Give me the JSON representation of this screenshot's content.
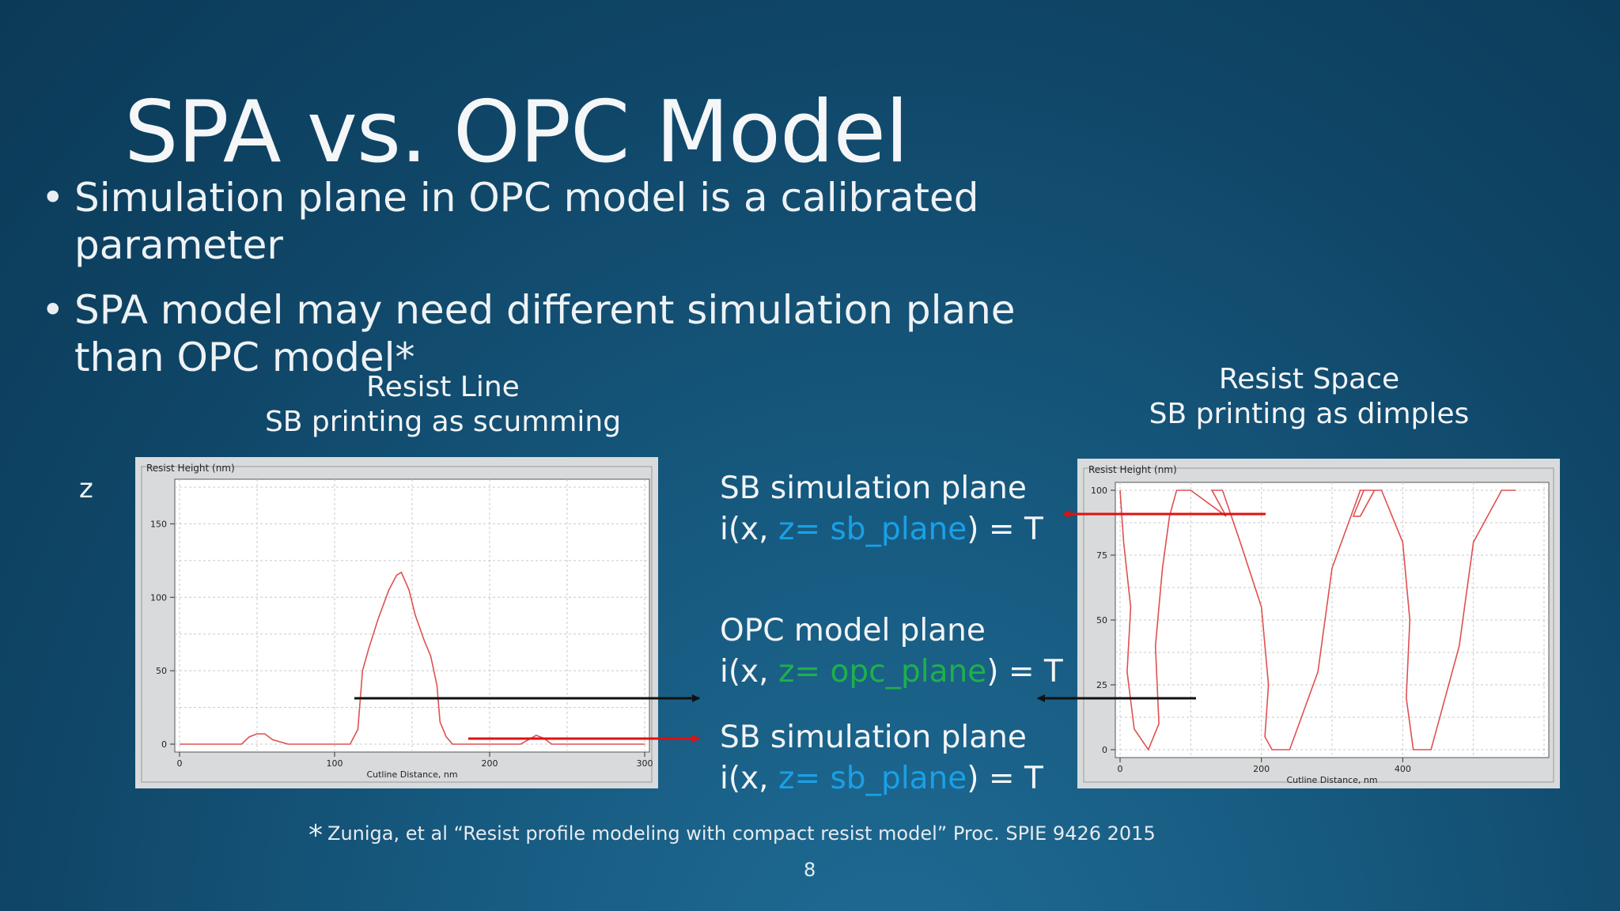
{
  "slide": {
    "title": "SPA vs. OPC Model",
    "bullets": [
      "Simulation plane in OPC model is a calibrated parameter",
      "SPA model may need different simulation plane than OPC model*"
    ],
    "left_caption": {
      "line1": "Resist Line",
      "line2": "SB printing as scumming"
    },
    "right_caption": {
      "line1": "Resist Space",
      "line2": "SB printing as dimples"
    },
    "z_label": "z",
    "planes": {
      "top": {
        "name": "SB simulation plane",
        "eq_prefix": "i(x, ",
        "eq_var": "z= sb_plane",
        "eq_suffix": ") = T"
      },
      "middle": {
        "name": "OPC model plane",
        "eq_prefix": "i(x, ",
        "eq_var": "z= opc_plane",
        "eq_suffix": ") = T"
      },
      "bottom": {
        "name": "SB simulation plane",
        "eq_prefix": "i(x, ",
        "eq_var": "z= sb_plane",
        "eq_suffix": ") = T"
      }
    },
    "footnote_marker": "*",
    "footnote": "Zuniga, et al “Resist profile modeling with compact resist model” Proc. SPIE 9426 2015",
    "page_number": "8"
  },
  "colors": {
    "sb_plane": "#1aa0e6",
    "opc_plane": "#1fb04a",
    "arrow_red": "#e01010",
    "arrow_black": "#111111",
    "curve": "#e05050"
  },
  "chart_data": [
    {
      "type": "line",
      "title": "Resist Height (nm)",
      "xlabel": "Cutline Distance, nm",
      "ylabel": "",
      "xlim": [
        0,
        300
      ],
      "ylim": [
        0,
        175
      ],
      "x_ticks": [
        "0",
        "100",
        "200",
        "300"
      ],
      "y_ticks": [
        "0",
        "50",
        "100",
        "150"
      ],
      "grid": true,
      "series": [
        {
          "x": [
            0,
            20,
            40,
            45,
            50,
            55,
            60,
            70,
            100,
            110,
            115,
            118,
            122,
            128,
            135,
            140,
            143,
            148,
            152,
            158,
            162,
            166,
            168,
            172,
            176,
            180,
            190,
            200,
            210,
            220,
            225,
            230,
            235,
            240,
            250,
            300
          ],
          "y": [
            0,
            0,
            0,
            5,
            7,
            7,
            3,
            0,
            0,
            0,
            10,
            50,
            65,
            85,
            105,
            115,
            117,
            105,
            88,
            70,
            60,
            40,
            15,
            5,
            0,
            0,
            0,
            0,
            0,
            0,
            3,
            6,
            4,
            0,
            0,
            0
          ]
        }
      ]
    },
    {
      "type": "line",
      "title": "Resist Height (nm)",
      "xlabel": "Cutline Distance, nm",
      "ylabel": "",
      "xlim": [
        0,
        600
      ],
      "ylim": [
        0,
        100
      ],
      "x_ticks": [
        "0",
        "200",
        "400"
      ],
      "y_ticks": [
        "0",
        "25",
        "50",
        "75",
        "100"
      ],
      "grid": true,
      "series": [
        {
          "x": [
            0,
            5,
            15,
            10,
            20,
            40,
            55,
            50,
            60,
            70,
            80,
            100,
            140,
            150,
            140,
            130,
            145,
            170,
            200,
            210,
            205,
            215,
            240,
            280,
            300,
            340,
            360,
            340,
            330,
            345,
            370,
            400,
            410,
            405,
            415,
            440,
            480,
            500,
            540,
            560,
            555
          ],
          "y": [
            100,
            80,
            55,
            30,
            8,
            0,
            10,
            40,
            70,
            90,
            100,
            100,
            92,
            90,
            95,
            100,
            100,
            80,
            55,
            25,
            5,
            0,
            0,
            30,
            70,
            100,
            100,
            90,
            90,
            100,
            100,
            80,
            50,
            20,
            0,
            0,
            40,
            80,
            100,
            100,
            100
          ]
        }
      ]
    }
  ]
}
